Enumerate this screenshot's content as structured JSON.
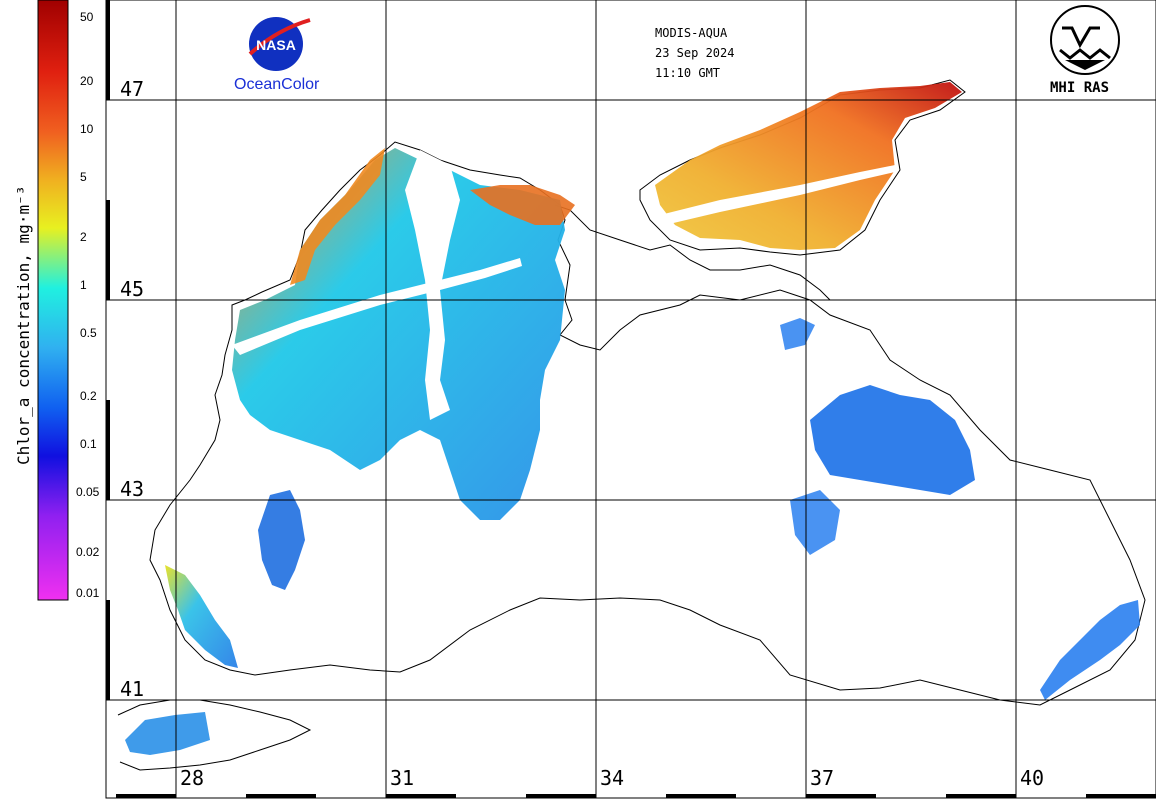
{
  "header": {
    "sensor": "MODIS-AQUA",
    "date": "23 Sep 2024",
    "time": "11:10 GMT"
  },
  "logos": {
    "nasa_text": "NASA",
    "oceancolor_label": "OceanColor",
    "mhi_label": "MHI RAS"
  },
  "colorbar": {
    "title": "Chlor_a concentration, mg·m⁻³",
    "ticks": [
      "50",
      "20",
      "10",
      "5",
      "2",
      "1",
      "0.5",
      "0.2",
      "0.1",
      "0.05",
      "0.02",
      "0.01"
    ],
    "colors": [
      "#a00000",
      "#e03010",
      "#f07020",
      "#f0c020",
      "#e8f020",
      "#20f0e0",
      "#30c0f0",
      "#1070f0",
      "#1010e0",
      "#9020f0",
      "#f020f0"
    ]
  },
  "grid": {
    "latitudes": [
      "47",
      "45",
      "43",
      "41"
    ],
    "longitudes": [
      "28",
      "31",
      "34",
      "37",
      "40"
    ]
  }
}
